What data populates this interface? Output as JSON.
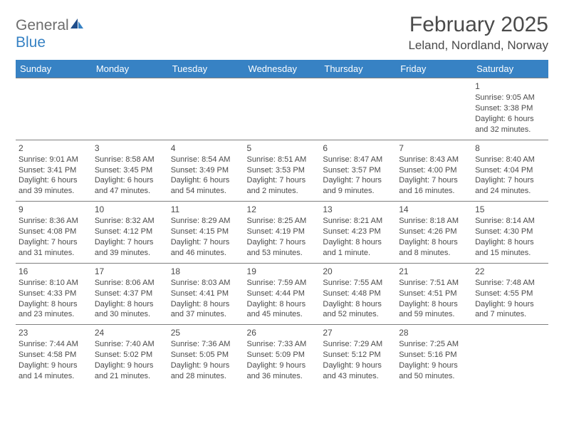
{
  "logo": {
    "text_general": "General",
    "text_blue": "Blue"
  },
  "header": {
    "month": "February 2025",
    "location": "Leland, Nordland, Norway"
  },
  "colors": {
    "header_bg": "#3782c4",
    "header_text": "#ffffff",
    "body_text": "#4a4a4a",
    "grid_border": "#808080",
    "page_bg": "#ffffff"
  },
  "days_of_week": [
    "Sunday",
    "Monday",
    "Tuesday",
    "Wednesday",
    "Thursday",
    "Friday",
    "Saturday"
  ],
  "weeks": [
    [
      null,
      null,
      null,
      null,
      null,
      null,
      {
        "n": "1",
        "sr": "Sunrise: 9:05 AM",
        "ss": "Sunset: 3:38 PM",
        "dl": "Daylight: 6 hours and 32 minutes."
      }
    ],
    [
      {
        "n": "2",
        "sr": "Sunrise: 9:01 AM",
        "ss": "Sunset: 3:41 PM",
        "dl": "Daylight: 6 hours and 39 minutes."
      },
      {
        "n": "3",
        "sr": "Sunrise: 8:58 AM",
        "ss": "Sunset: 3:45 PM",
        "dl": "Daylight: 6 hours and 47 minutes."
      },
      {
        "n": "4",
        "sr": "Sunrise: 8:54 AM",
        "ss": "Sunset: 3:49 PM",
        "dl": "Daylight: 6 hours and 54 minutes."
      },
      {
        "n": "5",
        "sr": "Sunrise: 8:51 AM",
        "ss": "Sunset: 3:53 PM",
        "dl": "Daylight: 7 hours and 2 minutes."
      },
      {
        "n": "6",
        "sr": "Sunrise: 8:47 AM",
        "ss": "Sunset: 3:57 PM",
        "dl": "Daylight: 7 hours and 9 minutes."
      },
      {
        "n": "7",
        "sr": "Sunrise: 8:43 AM",
        "ss": "Sunset: 4:00 PM",
        "dl": "Daylight: 7 hours and 16 minutes."
      },
      {
        "n": "8",
        "sr": "Sunrise: 8:40 AM",
        "ss": "Sunset: 4:04 PM",
        "dl": "Daylight: 7 hours and 24 minutes."
      }
    ],
    [
      {
        "n": "9",
        "sr": "Sunrise: 8:36 AM",
        "ss": "Sunset: 4:08 PM",
        "dl": "Daylight: 7 hours and 31 minutes."
      },
      {
        "n": "10",
        "sr": "Sunrise: 8:32 AM",
        "ss": "Sunset: 4:12 PM",
        "dl": "Daylight: 7 hours and 39 minutes."
      },
      {
        "n": "11",
        "sr": "Sunrise: 8:29 AM",
        "ss": "Sunset: 4:15 PM",
        "dl": "Daylight: 7 hours and 46 minutes."
      },
      {
        "n": "12",
        "sr": "Sunrise: 8:25 AM",
        "ss": "Sunset: 4:19 PM",
        "dl": "Daylight: 7 hours and 53 minutes."
      },
      {
        "n": "13",
        "sr": "Sunrise: 8:21 AM",
        "ss": "Sunset: 4:23 PM",
        "dl": "Daylight: 8 hours and 1 minute."
      },
      {
        "n": "14",
        "sr": "Sunrise: 8:18 AM",
        "ss": "Sunset: 4:26 PM",
        "dl": "Daylight: 8 hours and 8 minutes."
      },
      {
        "n": "15",
        "sr": "Sunrise: 8:14 AM",
        "ss": "Sunset: 4:30 PM",
        "dl": "Daylight: 8 hours and 15 minutes."
      }
    ],
    [
      {
        "n": "16",
        "sr": "Sunrise: 8:10 AM",
        "ss": "Sunset: 4:33 PM",
        "dl": "Daylight: 8 hours and 23 minutes."
      },
      {
        "n": "17",
        "sr": "Sunrise: 8:06 AM",
        "ss": "Sunset: 4:37 PM",
        "dl": "Daylight: 8 hours and 30 minutes."
      },
      {
        "n": "18",
        "sr": "Sunrise: 8:03 AM",
        "ss": "Sunset: 4:41 PM",
        "dl": "Daylight: 8 hours and 37 minutes."
      },
      {
        "n": "19",
        "sr": "Sunrise: 7:59 AM",
        "ss": "Sunset: 4:44 PM",
        "dl": "Daylight: 8 hours and 45 minutes."
      },
      {
        "n": "20",
        "sr": "Sunrise: 7:55 AM",
        "ss": "Sunset: 4:48 PM",
        "dl": "Daylight: 8 hours and 52 minutes."
      },
      {
        "n": "21",
        "sr": "Sunrise: 7:51 AM",
        "ss": "Sunset: 4:51 PM",
        "dl": "Daylight: 8 hours and 59 minutes."
      },
      {
        "n": "22",
        "sr": "Sunrise: 7:48 AM",
        "ss": "Sunset: 4:55 PM",
        "dl": "Daylight: 9 hours and 7 minutes."
      }
    ],
    [
      {
        "n": "23",
        "sr": "Sunrise: 7:44 AM",
        "ss": "Sunset: 4:58 PM",
        "dl": "Daylight: 9 hours and 14 minutes."
      },
      {
        "n": "24",
        "sr": "Sunrise: 7:40 AM",
        "ss": "Sunset: 5:02 PM",
        "dl": "Daylight: 9 hours and 21 minutes."
      },
      {
        "n": "25",
        "sr": "Sunrise: 7:36 AM",
        "ss": "Sunset: 5:05 PM",
        "dl": "Daylight: 9 hours and 28 minutes."
      },
      {
        "n": "26",
        "sr": "Sunrise: 7:33 AM",
        "ss": "Sunset: 5:09 PM",
        "dl": "Daylight: 9 hours and 36 minutes."
      },
      {
        "n": "27",
        "sr": "Sunrise: 7:29 AM",
        "ss": "Sunset: 5:12 PM",
        "dl": "Daylight: 9 hours and 43 minutes."
      },
      {
        "n": "28",
        "sr": "Sunrise: 7:25 AM",
        "ss": "Sunset: 5:16 PM",
        "dl": "Daylight: 9 hours and 50 minutes."
      },
      null
    ]
  ]
}
